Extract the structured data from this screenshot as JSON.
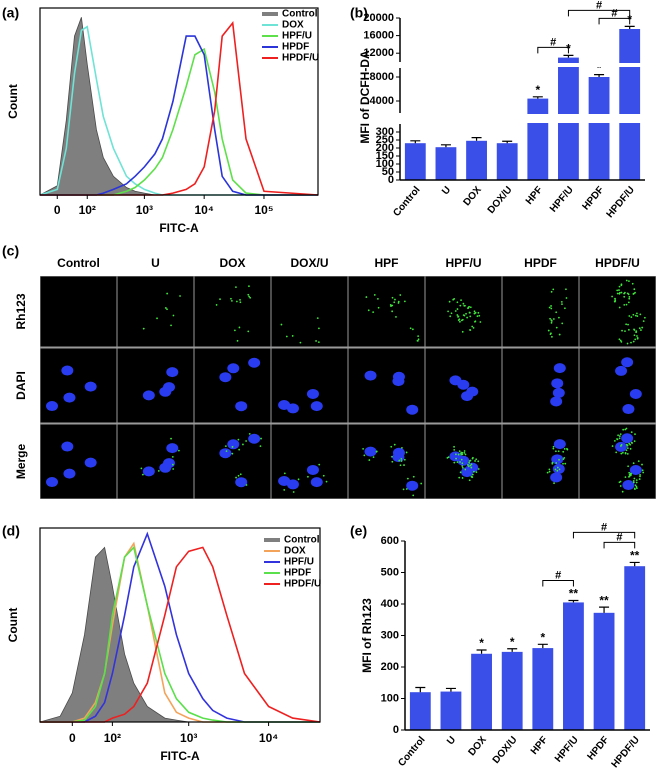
{
  "chart_data": [
    {
      "type": "flow-histogram",
      "label": "(a)",
      "x_label": "FITC-A",
      "y_label": "Count",
      "xscale": "biexponential",
      "xlim": [
        -50,
        800000
      ],
      "ylim": [
        0,
        100
      ],
      "xticks": [
        0,
        {
          "value": 100,
          "label": "10²"
        },
        {
          "value": 1000,
          "label": "10³"
        },
        {
          "value": 10000,
          "label": "10⁴"
        },
        {
          "value": 100000,
          "label": "10⁵"
        }
      ],
      "legend": "upper right",
      "x": [
        -50,
        0,
        25,
        50,
        75,
        100,
        150,
        200,
        300,
        500,
        700,
        1000,
        1500,
        2000,
        3000,
        5000,
        7000,
        10000,
        15000,
        20000,
        30000,
        50000,
        100000,
        800000
      ],
      "series": [
        {
          "name": "Control",
          "color": "#7f7f7f",
          "fill": true,
          "values": [
            0,
            5,
            40,
            85,
            95,
            70,
            35,
            20,
            10,
            4,
            2,
            1,
            0,
            0,
            0,
            0,
            0,
            0,
            0,
            0,
            0,
            0,
            0,
            0
          ]
        },
        {
          "name": "DOX",
          "color": "#6fe3d6",
          "values": [
            0,
            3,
            25,
            65,
            88,
            90,
            62,
            42,
            25,
            10,
            6,
            3,
            1,
            0,
            0,
            0,
            0,
            0,
            0,
            0,
            0,
            0,
            0,
            0
          ]
        },
        {
          "name": "HPF/U",
          "color": "#5ee04a",
          "values": [
            0,
            0,
            0,
            0,
            0,
            0,
            0,
            0,
            0,
            2,
            4,
            8,
            14,
            20,
            35,
            58,
            75,
            78,
            55,
            30,
            8,
            1,
            0,
            0
          ]
        },
        {
          "name": "HPDF",
          "color": "#2b35d8",
          "values": [
            0,
            0,
            0,
            0,
            0,
            0,
            0,
            1,
            3,
            6,
            10,
            15,
            22,
            30,
            50,
            85,
            85,
            75,
            35,
            10,
            2,
            0,
            0,
            0
          ]
        },
        {
          "name": "HPDF/U",
          "color": "#ee2020",
          "values": [
            0,
            0,
            0,
            0,
            0,
            0,
            0,
            0,
            0,
            0,
            0,
            0,
            0,
            0,
            1,
            3,
            6,
            15,
            45,
            85,
            92,
            30,
            2,
            0
          ]
        }
      ]
    },
    {
      "type": "broken-bar",
      "label": "(b)",
      "y_label": "MFI of DCFH-DA",
      "color": "#3a4ee8",
      "categories": [
        "Control",
        "U",
        "DOX",
        "DOX/U",
        "HPF",
        "HPF/U",
        "HPDF",
        "HPDF/U"
      ],
      "values": [
        230,
        205,
        245,
        230,
        4400,
        11000,
        8000,
        17500
      ],
      "errors": [
        15,
        15,
        20,
        12,
        300,
        500,
        400,
        600
      ],
      "axis_segments": [
        {
          "ylim": [
            0,
            350
          ],
          "yticks": [
            0,
            50,
            100,
            150,
            200,
            250,
            300
          ]
        },
        {
          "ylim": [
            2000,
            9500
          ],
          "yticks": [
            4000,
            8000
          ]
        },
        {
          "ylim": [
            10000,
            20000
          ],
          "yticks": [
            12000,
            16000,
            20000
          ]
        }
      ],
      "significance": [
        null,
        null,
        null,
        null,
        "*",
        "*",
        "*",
        "*"
      ],
      "comparisons": [
        {
          "pair": [
            4,
            5
          ],
          "label": "#"
        },
        {
          "pair": [
            6,
            7
          ],
          "label": "#"
        },
        {
          "pair": [
            5,
            7
          ],
          "label": "#"
        }
      ]
    },
    {
      "type": "flow-histogram",
      "label": "(d)",
      "x_label": "FITC-A",
      "y_label": "Count",
      "xscale": "biexponential",
      "xlim": [
        -75,
        44000
      ],
      "ylim": [
        0,
        100
      ],
      "xticks": [
        0,
        {
          "value": 100,
          "label": "10²"
        },
        {
          "value": 1000,
          "label": "10³"
        },
        {
          "value": 10000,
          "label": "10⁴"
        }
      ],
      "legend": "upper right",
      "x": [
        -75,
        -25,
        0,
        25,
        50,
        75,
        100,
        150,
        200,
        300,
        500,
        700,
        1000,
        1500,
        2000,
        3000,
        5000,
        10000,
        20000,
        44000
      ],
      "series": [
        {
          "name": "Control",
          "color": "#7f7f7f",
          "fill": true,
          "values": [
            0,
            3,
            15,
            45,
            85,
            90,
            70,
            35,
            20,
            8,
            2,
            1,
            0,
            0,
            0,
            0,
            0,
            0,
            0,
            0
          ]
        },
        {
          "name": "DOX",
          "color": "#f4a35a",
          "values": [
            0,
            0,
            0,
            2,
            10,
            25,
            50,
            85,
            92,
            60,
            15,
            5,
            2,
            0,
            0,
            0,
            0,
            0,
            0,
            0
          ]
        },
        {
          "name": "HPF/U",
          "color": "#3333dd",
          "values": [
            0,
            0,
            0,
            0,
            3,
            10,
            25,
            55,
            80,
            97,
            70,
            45,
            25,
            12,
            6,
            2,
            0,
            0,
            0,
            0
          ]
        },
        {
          "name": "HPDF",
          "color": "#59e04a",
          "values": [
            0,
            0,
            0,
            1,
            8,
            25,
            55,
            85,
            90,
            60,
            25,
            12,
            5,
            2,
            1,
            0,
            0,
            0,
            0,
            0
          ]
        },
        {
          "name": "HPDF/U",
          "color": "#ee2020",
          "values": [
            0,
            0,
            0,
            0,
            0,
            0,
            2,
            4,
            8,
            20,
            55,
            80,
            88,
            90,
            80,
            55,
            25,
            8,
            2,
            0
          ]
        }
      ]
    },
    {
      "type": "bar",
      "label": "(e)",
      "y_label": "MFI of Rh123",
      "color": "#3a4ee8",
      "categories": [
        "Control",
        "U",
        "DOX",
        "DOX/U",
        "HPF",
        "HPF/U",
        "HPDF",
        "HPDF/U"
      ],
      "values": [
        120,
        122,
        242,
        248,
        260,
        405,
        372,
        520
      ],
      "errors": [
        15,
        10,
        12,
        10,
        12,
        6,
        18,
        12
      ],
      "ylim": [
        0,
        600
      ],
      "yticks": [
        0,
        100,
        200,
        300,
        400,
        500,
        600
      ],
      "significance": [
        null,
        null,
        "*",
        "*",
        "*",
        "**",
        "**",
        "**"
      ],
      "comparisons": [
        {
          "pair": [
            4,
            5
          ],
          "label": "#"
        },
        {
          "pair": [
            6,
            7
          ],
          "label": "#"
        },
        {
          "pair": [
            5,
            7
          ],
          "label": "#"
        }
      ]
    }
  ],
  "micrograph_grid": {
    "label": "(c)",
    "columns": [
      "Control",
      "U",
      "DOX",
      "DOX/U",
      "HPF",
      "HPF/U",
      "HPDF",
      "HPDF/U"
    ],
    "rows": [
      "Rh123",
      "DAPI",
      "Merge"
    ]
  }
}
